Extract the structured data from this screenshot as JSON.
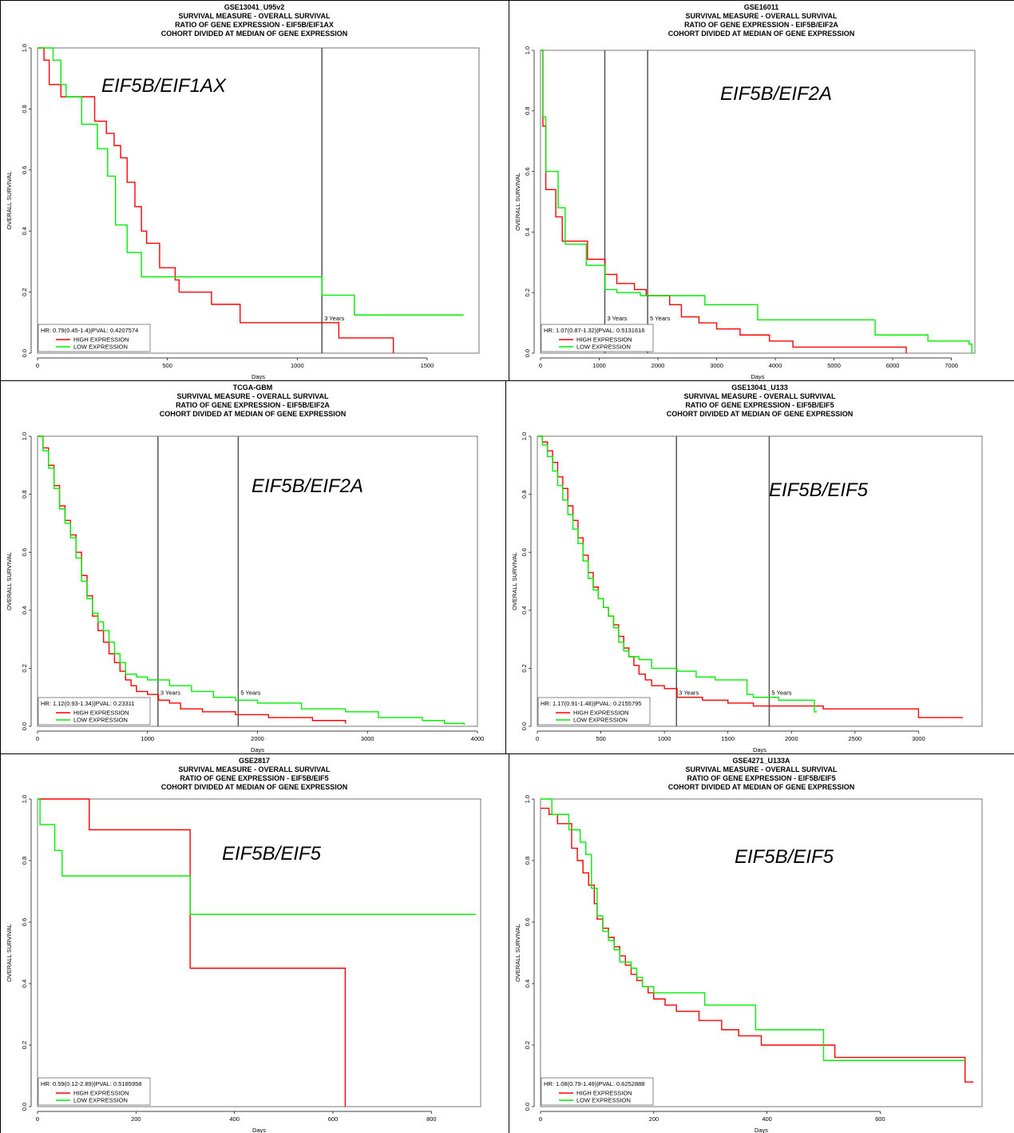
{
  "chart_data": [
    {
      "type": "line",
      "title_lines": [
        "GSE13041_U95v2",
        "SURVIVAL MEASURE -  OVERALL SURVIVAL",
        "RATIO OF GENE EXPRESSION -  EIF5B/EIF1AX",
        "COHORT DIVIDED AT MEDIAN OF GENE EXPRESSION"
      ],
      "gene_label": "EIF5B/EIF1AX",
      "xlabel": "Days",
      "ylabel": "OVERALL SURVIVAL",
      "xlim": [
        0,
        1700
      ],
      "ylim": [
        0,
        1
      ],
      "xticks": [
        0,
        500,
        1000,
        1500
      ],
      "yticks": [
        0.0,
        0.2,
        0.4,
        0.6,
        0.8,
        1.0
      ],
      "year_markers": [
        {
          "x": 1095,
          "label": "3 Years"
        }
      ],
      "hr_text": "HR: 0.79(0.45-1.4)|PVAL: 0.4207574",
      "series": [
        {
          "name": "HIGH EXPRESSION",
          "color": "#ff0000",
          "x": [
            0,
            25,
            45,
            90,
            220,
            265,
            295,
            320,
            345,
            375,
            400,
            420,
            470,
            530,
            545,
            670,
            780,
            1120,
            1160,
            1370,
            1370
          ],
          "y": [
            1.0,
            0.96,
            0.88,
            0.84,
            0.76,
            0.72,
            0.68,
            0.64,
            0.56,
            0.48,
            0.4,
            0.36,
            0.28,
            0.24,
            0.2,
            0.16,
            0.1,
            0.1,
            0.05,
            0.05,
            0.0
          ]
        },
        {
          "name": "LOW EXPRESSION",
          "color": "#00ee00",
          "x": [
            0,
            60,
            90,
            110,
            170,
            230,
            270,
            300,
            345,
            400,
            1095,
            1220,
            1640
          ],
          "y": [
            1.0,
            0.96,
            0.88,
            0.84,
            0.75,
            0.67,
            0.58,
            0.42,
            0.33,
            0.25,
            0.19,
            0.125,
            0.125
          ]
        }
      ]
    },
    {
      "type": "line",
      "title_lines": [
        "GSE16011",
        "SURVIVAL MEASURE -  OVERALL SURVIVAL",
        "RATIO OF GENE EXPRESSION -  EIF5B/EIF2A",
        "COHORT DIVIDED AT MEDIAN OF GENE EXPRESSION"
      ],
      "gene_label": "EIF5B/EIF2A",
      "xlabel": "Days",
      "ylabel": "OVERALL SURVIVAL",
      "xlim": [
        0,
        7400
      ],
      "ylim": [
        0,
        1
      ],
      "xticks": [
        0,
        1000,
        2000,
        3000,
        4000,
        5000,
        6000,
        7000
      ],
      "yticks": [
        0.0,
        0.2,
        0.4,
        0.6,
        0.8,
        1.0
      ],
      "year_markers": [
        {
          "x": 1095,
          "label": "3 Years"
        },
        {
          "x": 1825,
          "label": "5 Years"
        }
      ],
      "hr_text": "HR: 1.07(0.87-1.32)|PVAL: 0.5131616",
      "series": [
        {
          "name": "HIGH EXPRESSION",
          "color": "#ff0000",
          "x": [
            0,
            40,
            90,
            140,
            260,
            370,
            500,
            800,
            1100,
            1300,
            1600,
            1800,
            2200,
            2400,
            2700,
            3000,
            3400,
            3900,
            4300,
            5200,
            6200,
            6230
          ],
          "y": [
            1.0,
            0.75,
            0.54,
            0.54,
            0.45,
            0.37,
            0.37,
            0.31,
            0.26,
            0.23,
            0.21,
            0.19,
            0.16,
            0.12,
            0.1,
            0.08,
            0.06,
            0.04,
            0.02,
            0.02,
            0.02,
            0.0
          ]
        },
        {
          "name": "LOW EXPRESSION",
          "color": "#00ee00",
          "x": [
            0,
            40,
            90,
            220,
            300,
            420,
            780,
            1100,
            1300,
            1700,
            2500,
            2800,
            3700,
            5500,
            5700,
            6600,
            7300,
            7350
          ],
          "y": [
            1.0,
            0.78,
            0.6,
            0.6,
            0.48,
            0.36,
            0.29,
            0.21,
            0.2,
            0.19,
            0.19,
            0.16,
            0.11,
            0.11,
            0.06,
            0.04,
            0.03,
            0.0
          ]
        }
      ]
    },
    {
      "type": "line",
      "title_lines": [
        "TCGA-GBM",
        "SURVIVAL MEASURE -  OVERALL SURVIVAL",
        "RATIO OF GENE EXPRESSION -  EIF5B/EIF2A",
        "COHORT DIVIDED AT MEDIAN OF GENE EXPRESSION"
      ],
      "gene_label": "EIF5B/EIF2A",
      "xlabel": "Days",
      "ylabel": "OVERALL SURVIVAL",
      "xlim": [
        0,
        4000
      ],
      "ylim": [
        0,
        1
      ],
      "xticks": [
        0,
        1000,
        2000,
        3000,
        4000
      ],
      "yticks": [
        0.0,
        0.2,
        0.4,
        0.6,
        0.8,
        1.0
      ],
      "year_markers": [
        {
          "x": 1095,
          "label": "3 Years"
        },
        {
          "x": 1825,
          "label": "5 Years"
        }
      ],
      "hr_text": "HR: 1.12(0.93-1.34)|PVAL: 0.23311",
      "series": [
        {
          "name": "HIGH EXPRESSION",
          "color": "#ff0000",
          "x": [
            0,
            50,
            100,
            150,
            200,
            250,
            300,
            350,
            400,
            450,
            500,
            550,
            600,
            650,
            700,
            750,
            800,
            850,
            900,
            1000,
            1100,
            1200,
            1300,
            1500,
            1800,
            2100,
            2500,
            2800
          ],
          "y": [
            1.0,
            0.96,
            0.9,
            0.83,
            0.76,
            0.71,
            0.66,
            0.6,
            0.52,
            0.45,
            0.38,
            0.33,
            0.29,
            0.25,
            0.22,
            0.19,
            0.16,
            0.14,
            0.12,
            0.11,
            0.09,
            0.08,
            0.06,
            0.05,
            0.04,
            0.03,
            0.02,
            0.01
          ]
        },
        {
          "name": "LOW EXPRESSION",
          "color": "#00ee00",
          "x": [
            0,
            50,
            100,
            150,
            200,
            250,
            300,
            350,
            400,
            450,
            500,
            550,
            600,
            650,
            700,
            750,
            800,
            900,
            1000,
            1200,
            1400,
            1600,
            1800,
            2000,
            2400,
            2800,
            3100,
            3500,
            3700,
            3880
          ],
          "y": [
            1.0,
            0.95,
            0.89,
            0.82,
            0.75,
            0.7,
            0.65,
            0.58,
            0.5,
            0.44,
            0.39,
            0.36,
            0.33,
            0.29,
            0.25,
            0.22,
            0.18,
            0.17,
            0.16,
            0.14,
            0.12,
            0.1,
            0.09,
            0.08,
            0.06,
            0.05,
            0.03,
            0.02,
            0.01,
            0.005
          ]
        }
      ]
    },
    {
      "type": "line",
      "title_lines": [
        "GSE13041_U133",
        "SURVIVAL MEASURE -  OVERALL SURVIVAL",
        "RATIO OF GENE EXPRESSION -  EIF5B/EIF5",
        "COHORT DIVIDED AT MEDIAN OF GENE EXPRESSION"
      ],
      "gene_label": "EIF5B/EIF5",
      "xlabel": "Days",
      "ylabel": "OVERALL SURVIVAL",
      "xlim": [
        0,
        3500
      ],
      "ylim": [
        0,
        1
      ],
      "xticks": [
        0,
        500,
        1000,
        1500,
        2000,
        2500,
        3000
      ],
      "yticks": [
        0.0,
        0.2,
        0.4,
        0.6,
        0.8,
        1.0
      ],
      "year_markers": [
        {
          "x": 1095,
          "label": "3 Years"
        },
        {
          "x": 1825,
          "label": "5 Years"
        }
      ],
      "hr_text": "HR: 1.17(0.91-1.48)|PVAL: 0.2155795",
      "series": [
        {
          "name": "HIGH EXPRESSION",
          "color": "#ff0000",
          "x": [
            0,
            40,
            80,
            120,
            160,
            200,
            240,
            280,
            320,
            360,
            400,
            440,
            480,
            520,
            560,
            600,
            640,
            680,
            720,
            760,
            800,
            850,
            900,
            1000,
            1100,
            1300,
            1500,
            1700,
            2000,
            2250,
            3000,
            3350
          ],
          "y": [
            1.0,
            0.98,
            0.95,
            0.91,
            0.86,
            0.82,
            0.76,
            0.71,
            0.65,
            0.59,
            0.53,
            0.48,
            0.44,
            0.41,
            0.38,
            0.35,
            0.31,
            0.27,
            0.24,
            0.21,
            0.18,
            0.16,
            0.14,
            0.13,
            0.1,
            0.09,
            0.08,
            0.07,
            0.07,
            0.06,
            0.03,
            0.03
          ]
        },
        {
          "name": "LOW EXPRESSION",
          "color": "#00ee00",
          "x": [
            0,
            40,
            80,
            120,
            160,
            200,
            240,
            280,
            320,
            360,
            400,
            440,
            480,
            520,
            560,
            600,
            640,
            680,
            720,
            800,
            900,
            1100,
            1250,
            1400,
            1650,
            1700,
            1900,
            2100,
            2180,
            2200
          ],
          "y": [
            1.0,
            0.97,
            0.93,
            0.88,
            0.83,
            0.78,
            0.73,
            0.68,
            0.63,
            0.57,
            0.51,
            0.47,
            0.44,
            0.41,
            0.38,
            0.34,
            0.29,
            0.26,
            0.24,
            0.23,
            0.2,
            0.19,
            0.17,
            0.16,
            0.11,
            0.1,
            0.09,
            0.09,
            0.05,
            0.05
          ]
        }
      ]
    },
    {
      "type": "line",
      "title_lines": [
        "GSE2817",
        "SURVIVAL MEASURE -  OVERALL SURVIVAL",
        "RATIO OF GENE EXPRESSION -  EIF5B/EIF5",
        "COHORT DIVIDED AT MEDIAN OF GENE EXPRESSION"
      ],
      "gene_label": "EIF5B/EIF5",
      "xlabel": "Days",
      "ylabel": "OVERALL SURVIVAL",
      "xlim": [
        0,
        900
      ],
      "ylim": [
        0,
        1
      ],
      "xticks": [
        0,
        200,
        400,
        600,
        800
      ],
      "yticks": [
        0.0,
        0.2,
        0.4,
        0.6,
        0.8,
        1.0
      ],
      "year_markers": [],
      "hr_text": "HR: 0.59(0.12-2.89)|PVAL: 0.5185958",
      "series": [
        {
          "name": "HIGH EXPRESSION",
          "color": "#ff0000",
          "x": [
            0,
            105,
            310,
            625,
            625
          ],
          "y": [
            1.0,
            0.9,
            0.45,
            0.45,
            0.0
          ]
        },
        {
          "name": "LOW EXPRESSION",
          "color": "#00ee00",
          "x": [
            0,
            5,
            35,
            50,
            310,
            890
          ],
          "y": [
            1.0,
            0.917,
            0.833,
            0.75,
            0.625,
            0.625
          ]
        }
      ]
    },
    {
      "type": "line",
      "title_lines": [
        "GSE4271_U133A",
        "SURVIVAL MEASURE -  OVERALL SURVIVAL",
        "RATIO OF GENE EXPRESSION -  EIF5B/EIF5",
        "COHORT DIVIDED AT MEDIAN OF GENE EXPRESSION"
      ],
      "gene_label": "EIF5B/EIF5",
      "xlabel": "Days",
      "ylabel": "OVERALL SURVIVAL",
      "xlim": [
        0,
        780
      ],
      "ylim": [
        0,
        1
      ],
      "xticks": [
        0,
        200,
        400,
        600
      ],
      "yticks": [
        0.0,
        0.2,
        0.4,
        0.6,
        0.8,
        1.0
      ],
      "year_markers": [],
      "hr_text": "HR: 1.08(0.79-1.49)|PVAL: 0.6252888",
      "series": [
        {
          "name": "HIGH EXPRESSION",
          "color": "#ff0000",
          "x": [
            0,
            15,
            30,
            55,
            65,
            75,
            85,
            95,
            100,
            110,
            120,
            130,
            140,
            150,
            160,
            170,
            180,
            190,
            200,
            220,
            240,
            280,
            320,
            350,
            390,
            440,
            520,
            740,
            750,
            765
          ],
          "y": [
            0.97,
            0.95,
            0.92,
            0.84,
            0.8,
            0.76,
            0.72,
            0.66,
            0.61,
            0.58,
            0.55,
            0.52,
            0.49,
            0.46,
            0.43,
            0.41,
            0.39,
            0.37,
            0.35,
            0.33,
            0.31,
            0.28,
            0.25,
            0.23,
            0.2,
            0.2,
            0.16,
            0.16,
            0.08,
            0.08
          ]
        },
        {
          "name": "LOW EXPRESSION",
          "color": "#00ee00",
          "x": [
            0,
            20,
            50,
            70,
            80,
            90,
            100,
            110,
            120,
            130,
            140,
            160,
            170,
            180,
            200,
            215,
            290,
            380,
            500,
            750
          ],
          "y": [
            1.0,
            0.95,
            0.9,
            0.86,
            0.82,
            0.71,
            0.62,
            0.57,
            0.54,
            0.51,
            0.47,
            0.45,
            0.42,
            0.39,
            0.37,
            0.37,
            0.33,
            0.25,
            0.15,
            0.15
          ]
        }
      ]
    }
  ]
}
